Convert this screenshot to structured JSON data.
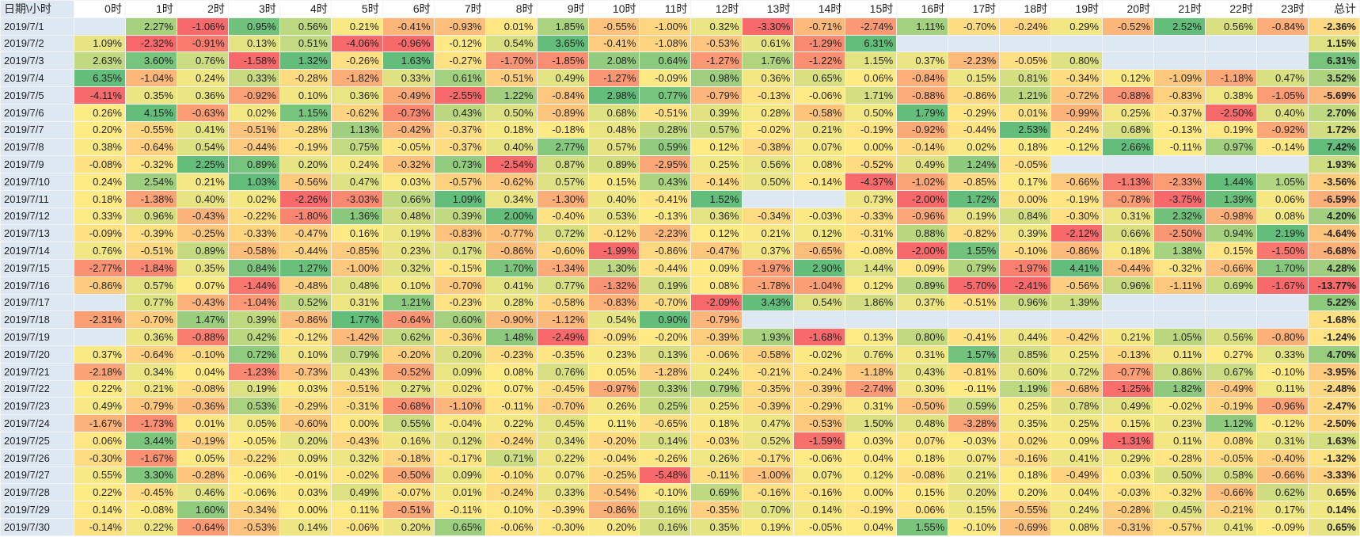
{
  "header": [
    "日期\\小时",
    "0时",
    "1时",
    "2时",
    "3时",
    "4时",
    "5时",
    "6时",
    "7时",
    "8时",
    "9时",
    "10时",
    "11时",
    "12时",
    "13时",
    "14时",
    "15时",
    "16时",
    "17时",
    "18时",
    "19时",
    "20时",
    "21时",
    "22时",
    "23时",
    "总计"
  ],
  "rows": [
    [
      "2019/7/1",
      null,
      "2.27%",
      "-1.06%",
      "0.95%",
      "0.56%",
      "0.21%",
      "-0.41%",
      "-0.93%",
      "0.01%",
      "1.85%",
      "-0.55%",
      "-1.00%",
      "0.32%",
      "-3.30%",
      "-0.71%",
      "-2.74%",
      "1.11%",
      "-0.70%",
      "-0.24%",
      "0.29%",
      "-0.52%",
      "2.52%",
      "0.56%",
      "-0.84%",
      "-2.36%"
    ],
    [
      "2019/7/2",
      "1.09%",
      "-2.32%",
      "-0.91%",
      "0.13%",
      "0.51%",
      "-4.06%",
      "-0.96%",
      "-0.12%",
      "0.54%",
      "3.65%",
      "-0.41%",
      "-1.08%",
      "-0.53%",
      "0.61%",
      "-1.29%",
      "6.31%",
      null,
      null,
      null,
      null,
      null,
      null,
      null,
      null,
      "1.15%"
    ],
    [
      "2019/7/3",
      "2.63%",
      "3.60%",
      "0.76%",
      "-1.58%",
      "1.32%",
      "-0.26%",
      "1.63%",
      "-0.27%",
      "-1.70%",
      "-1.85%",
      "2.08%",
      "0.64%",
      "-1.27%",
      "1.76%",
      "-1.22%",
      "1.15%",
      "0.37%",
      "-2.23%",
      "-0.05%",
      "0.80%",
      null,
      null,
      null,
      null,
      "6.31%"
    ],
    [
      "2019/7/4",
      "6.35%",
      "-1.04%",
      "0.24%",
      "0.33%",
      "-0.28%",
      "-1.82%",
      "0.33%",
      "0.61%",
      "-0.51%",
      "0.49%",
      "-1.27%",
      "-0.09%",
      "0.98%",
      "0.36%",
      "0.65%",
      "0.06%",
      "-0.84%",
      "0.15%",
      "0.81%",
      "-0.34%",
      "0.12%",
      "-1.09%",
      "-1.18%",
      "0.47%",
      "3.52%"
    ],
    [
      "2019/7/5",
      "-4.11%",
      "0.35%",
      "0.36%",
      "-0.92%",
      "0.10%",
      "0.36%",
      "-0.49%",
      "-2.55%",
      "1.22%",
      "-0.84%",
      "2.98%",
      "0.77%",
      "-0.79%",
      "-0.13%",
      "-0.06%",
      "1.71%",
      "-0.88%",
      "-0.86%",
      "1.21%",
      "-0.72%",
      "-0.88%",
      "-0.83%",
      "0.38%",
      "-1.05%",
      "-5.69%"
    ],
    [
      "2019/7/6",
      "0.26%",
      "4.15%",
      "-0.63%",
      "0.02%",
      "1.15%",
      "-0.62%",
      "-0.73%",
      "0.43%",
      "0.50%",
      "-0.89%",
      "0.68%",
      "-0.51%",
      "0.39%",
      "0.28%",
      "-0.58%",
      "0.50%",
      "1.79%",
      "-0.29%",
      "0.01%",
      "-0.99%",
      "0.25%",
      "-0.37%",
      "-2.50%",
      "0.40%",
      "2.70%"
    ],
    [
      "2019/7/7",
      "0.20%",
      "-0.55%",
      "0.41%",
      "-0.51%",
      "-0.28%",
      "1.13%",
      "-0.42%",
      "-0.37%",
      "0.18%",
      "-0.18%",
      "0.48%",
      "0.28%",
      "0.57%",
      "-0.02%",
      "0.21%",
      "-0.19%",
      "-0.92%",
      "-0.44%",
      "2.53%",
      "-0.24%",
      "0.68%",
      "-0.13%",
      "0.19%",
      "-0.92%",
      "1.72%"
    ],
    [
      "2019/7/8",
      "0.38%",
      "-0.64%",
      "0.54%",
      "-0.44%",
      "-0.19%",
      "0.75%",
      "-0.05%",
      "-0.37%",
      "0.40%",
      "2.77%",
      "0.57%",
      "0.59%",
      "0.12%",
      "-0.38%",
      "0.07%",
      "0.00%",
      "-0.14%",
      "0.02%",
      "0.18%",
      "-0.12%",
      "2.66%",
      "-0.11%",
      "0.97%",
      "-0.14%",
      "7.42%"
    ],
    [
      "2019/7/9",
      "-0.08%",
      "-0.32%",
      "2.25%",
      "0.89%",
      "0.20%",
      "0.24%",
      "-0.32%",
      "0.73%",
      "-2.54%",
      "0.87%",
      "0.89%",
      "-2.95%",
      "0.25%",
      "0.56%",
      "0.08%",
      "-0.52%",
      "0.49%",
      "1.24%",
      "-0.05%",
      null,
      null,
      null,
      null,
      null,
      "1.93%"
    ],
    [
      "2019/7/10",
      "0.24%",
      "2.54%",
      "0.21%",
      "1.03%",
      "-0.56%",
      "0.47%",
      "0.03%",
      "-0.57%",
      "-0.62%",
      "0.57%",
      "0.15%",
      "0.43%",
      "-0.14%",
      "0.50%",
      "-0.14%",
      "-4.37%",
      "-1.02%",
      "-0.85%",
      "0.17%",
      "-0.66%",
      "-1.13%",
      "-2.33%",
      "1.44%",
      "1.05%",
      "-3.56%"
    ],
    [
      "2019/7/11",
      "0.18%",
      "-1.38%",
      "0.40%",
      "0.02%",
      "-2.26%",
      "-3.03%",
      "0.66%",
      "1.09%",
      "0.34%",
      "-1.30%",
      "0.40%",
      "-0.41%",
      "1.52%",
      null,
      null,
      "0.73%",
      "-2.00%",
      "1.72%",
      "0.00%",
      "-0.19%",
      "-0.78%",
      "-3.75%",
      "1.39%",
      "0.06%",
      "-6.59%"
    ],
    [
      "2019/7/12",
      "0.33%",
      "0.96%",
      "-0.43%",
      "-0.22%",
      "-1.80%",
      "1.36%",
      "0.48%",
      "0.39%",
      "2.00%",
      "-0.40%",
      "0.53%",
      "-0.13%",
      "0.36%",
      "-0.34%",
      "-0.03%",
      "-0.33%",
      "-0.96%",
      "0.19%",
      "0.84%",
      "-0.30%",
      "0.31%",
      "2.32%",
      "-0.98%",
      "0.08%",
      "4.20%"
    ],
    [
      "2019/7/13",
      "-0.09%",
      "-0.39%",
      "-0.25%",
      "-0.33%",
      "-0.47%",
      "0.16%",
      "0.19%",
      "-0.83%",
      "-0.77%",
      "0.72%",
      "-0.12%",
      "-2.23%",
      "0.12%",
      "0.21%",
      "0.12%",
      "-0.31%",
      "0.88%",
      "-0.82%",
      "0.39%",
      "-2.12%",
      "0.66%",
      "-2.50%",
      "0.94%",
      "2.19%",
      "-4.64%"
    ],
    [
      "2019/7/14",
      "0.76%",
      "-0.51%",
      "0.89%",
      "-0.58%",
      "-0.44%",
      "-0.85%",
      "0.23%",
      "0.17%",
      "-0.86%",
      "-0.60%",
      "-1.99%",
      "-0.86%",
      "-0.47%",
      "0.37%",
      "-0.65%",
      "-0.08%",
      "-2.00%",
      "1.55%",
      "-0.10%",
      "-0.86%",
      "0.18%",
      "1.38%",
      "0.15%",
      "-1.50%",
      "-6.68%"
    ],
    [
      "2019/7/15",
      "-2.77%",
      "-1.84%",
      "0.35%",
      "0.84%",
      "1.27%",
      "-1.00%",
      "0.32%",
      "-0.15%",
      "1.70%",
      "-1.34%",
      "1.30%",
      "-0.44%",
      "0.09%",
      "-1.97%",
      "2.90%",
      "1.44%",
      "0.09%",
      "0.79%",
      "-1.97%",
      "4.41%",
      "-0.44%",
      "-0.32%",
      "-0.66%",
      "1.70%",
      "4.28%"
    ],
    [
      "2019/7/16",
      "-0.86%",
      "0.57%",
      "0.07%",
      "-1.44%",
      "-0.48%",
      "0.48%",
      "0.10%",
      "-0.70%",
      "0.41%",
      "0.77%",
      "-1.32%",
      "0.19%",
      "0.08%",
      "-1.78%",
      "-1.04%",
      "0.12%",
      "0.89%",
      "-5.70%",
      "-2.41%",
      "-0.56%",
      "0.96%",
      "-1.11%",
      "0.69%",
      "-1.67%",
      "-13.77%"
    ],
    [
      "2019/7/17",
      null,
      "0.77%",
      "-0.43%",
      "-1.04%",
      "0.52%",
      "0.31%",
      "1.21%",
      "-0.23%",
      "0.28%",
      "-0.58%",
      "-0.83%",
      "-0.70%",
      "-2.09%",
      "3.43%",
      "0.54%",
      "1.86%",
      "0.37%",
      "-0.51%",
      "0.96%",
      "1.39%",
      null,
      null,
      null,
      null,
      "5.22%"
    ],
    [
      "2019/7/18",
      "-2.31%",
      "-0.70%",
      "1.47%",
      "0.39%",
      "-0.86%",
      "1.77%",
      "-0.64%",
      "0.60%",
      "-0.90%",
      "-1.12%",
      "0.54%",
      "0.90%",
      "-0.79%",
      null,
      null,
      null,
      null,
      null,
      null,
      null,
      null,
      null,
      null,
      null,
      "-1.68%"
    ],
    [
      "2019/7/19",
      null,
      "0.36%",
      "-0.88%",
      "0.42%",
      "-0.12%",
      "-1.42%",
      "0.62%",
      "-0.36%",
      "1.48%",
      "-2.49%",
      "-0.09%",
      "-0.20%",
      "-0.39%",
      "1.93%",
      "-1.68%",
      "0.13%",
      "0.80%",
      "-0.41%",
      "0.44%",
      "-0.42%",
      "0.21%",
      "1.05%",
      "0.56%",
      "-0.80%",
      "-1.24%"
    ],
    [
      "2019/7/20",
      "0.37%",
      "-0.64%",
      "-0.10%",
      "0.72%",
      "0.10%",
      "0.79%",
      "-0.20%",
      "0.20%",
      "-0.23%",
      "-0.35%",
      "0.23%",
      "0.13%",
      "-0.06%",
      "-0.58%",
      "-0.02%",
      "0.76%",
      "0.31%",
      "1.57%",
      "0.85%",
      "0.25%",
      "-0.13%",
      "0.11%",
      "0.27%",
      "0.33%",
      "4.70%"
    ],
    [
      "2019/7/21",
      "-2.18%",
      "0.34%",
      "0.04%",
      "-1.23%",
      "-0.73%",
      "0.43%",
      "-0.52%",
      "0.09%",
      "0.08%",
      "0.76%",
      "0.05%",
      "-1.28%",
      "0.24%",
      "-0.21%",
      "-0.24%",
      "-1.18%",
      "0.43%",
      "-0.81%",
      "0.60%",
      "0.72%",
      "-0.77%",
      "0.86%",
      "0.67%",
      "-0.10%",
      "-3.95%"
    ],
    [
      "2019/7/22",
      "0.22%",
      "0.21%",
      "-0.08%",
      "0.19%",
      "0.03%",
      "-0.51%",
      "0.27%",
      "0.02%",
      "0.07%",
      "-0.45%",
      "-0.97%",
      "0.33%",
      "0.79%",
      "-0.35%",
      "-0.39%",
      "-2.74%",
      "0.30%",
      "-0.11%",
      "1.19%",
      "-0.68%",
      "-1.25%",
      "1.82%",
      "-0.49%",
      "0.11%",
      "-2.48%"
    ],
    [
      "2019/7/23",
      "0.49%",
      "-0.79%",
      "-0.36%",
      "0.53%",
      "-0.29%",
      "-0.31%",
      "-0.68%",
      "-1.10%",
      "-0.11%",
      "-0.70%",
      "0.26%",
      "0.25%",
      "0.25%",
      "-0.39%",
      "-0.29%",
      "0.31%",
      "-0.50%",
      "0.59%",
      "0.25%",
      "0.78%",
      "0.49%",
      "-0.02%",
      "-0.19%",
      "-0.96%",
      "-2.47%"
    ],
    [
      "2019/7/24",
      "-1.67%",
      "-1.73%",
      "0.01%",
      "0.05%",
      "-0.60%",
      "0.00%",
      "0.55%",
      "-0.04%",
      "0.22%",
      "0.45%",
      "0.11%",
      "-0.65%",
      "0.18%",
      "0.47%",
      "-0.53%",
      "1.50%",
      "0.48%",
      "-3.28%",
      "0.35%",
      "0.25%",
      "0.15%",
      "0.23%",
      "1.12%",
      "-0.12%",
      "-2.50%"
    ],
    [
      "2019/7/25",
      "0.06%",
      "3.44%",
      "-0.19%",
      "-0.05%",
      "0.20%",
      "-0.43%",
      "0.16%",
      "0.12%",
      "-0.24%",
      "0.34%",
      "-0.20%",
      "0.14%",
      "-0.03%",
      "0.52%",
      "-1.59%",
      "0.03%",
      "0.07%",
      "-0.03%",
      "0.02%",
      "0.09%",
      "-1.31%",
      "0.11%",
      "0.08%",
      "0.31%",
      "1.63%"
    ],
    [
      "2019/7/26",
      "-0.30%",
      "-1.67%",
      "0.05%",
      "-0.22%",
      "0.09%",
      "0.32%",
      "-0.18%",
      "-0.17%",
      "0.71%",
      "0.22%",
      "-0.04%",
      "-0.26%",
      "0.26%",
      "-0.17%",
      "-0.06%",
      "0.04%",
      "0.18%",
      "0.07%",
      "-0.16%",
      "0.41%",
      "0.29%",
      "-0.28%",
      "-0.05%",
      "-0.40%",
      "-1.32%"
    ],
    [
      "2019/7/27",
      "0.55%",
      "3.30%",
      "-0.28%",
      "-0.06%",
      "-0.01%",
      "-0.02%",
      "-0.50%",
      "0.09%",
      "-0.10%",
      "0.07%",
      "-0.25%",
      "-5.48%",
      "-0.11%",
      "-1.00%",
      "0.07%",
      "0.12%",
      "-0.08%",
      "0.21%",
      "0.18%",
      "-0.49%",
      "0.03%",
      "0.50%",
      "0.58%",
      "-0.66%",
      "-3.33%"
    ],
    [
      "2019/7/28",
      "0.22%",
      "-0.45%",
      "0.46%",
      "-0.06%",
      "0.03%",
      "0.49%",
      "-0.07%",
      "0.01%",
      "-0.24%",
      "0.33%",
      "-0.54%",
      "-0.10%",
      "0.69%",
      "-0.16%",
      "-0.16%",
      "0.00%",
      "0.15%",
      "0.20%",
      "0.20%",
      "0.04%",
      "-0.03%",
      "-0.32%",
      "-0.66%",
      "0.62%",
      "0.65%"
    ],
    [
      "2019/7/29",
      "0.14%",
      "-0.08%",
      "1.60%",
      "-0.34%",
      "0.00%",
      "0.11%",
      "-0.51%",
      "-0.11%",
      "0.10%",
      "-0.39%",
      "-0.86%",
      "0.16%",
      "-0.35%",
      "0.70%",
      "0.14%",
      "-0.19%",
      "0.06%",
      "0.15%",
      "-0.55%",
      "0.24%",
      "-0.28%",
      "0.45%",
      "-0.21%",
      "0.17%",
      "0.14%"
    ],
    [
      "2019/7/30",
      "-0.14%",
      "0.22%",
      "-0.64%",
      "-0.53%",
      "0.14%",
      "-0.06%",
      "0.20%",
      "0.65%",
      "-0.06%",
      "-0.30%",
      "0.20%",
      "0.16%",
      "0.35%",
      "0.19%",
      "-0.05%",
      "0.04%",
      "1.55%",
      "-0.10%",
      "-0.69%",
      "0.08%",
      "-0.31%",
      "-0.57%",
      "0.41%",
      "-0.09%",
      "0.65%"
    ]
  ]
}
